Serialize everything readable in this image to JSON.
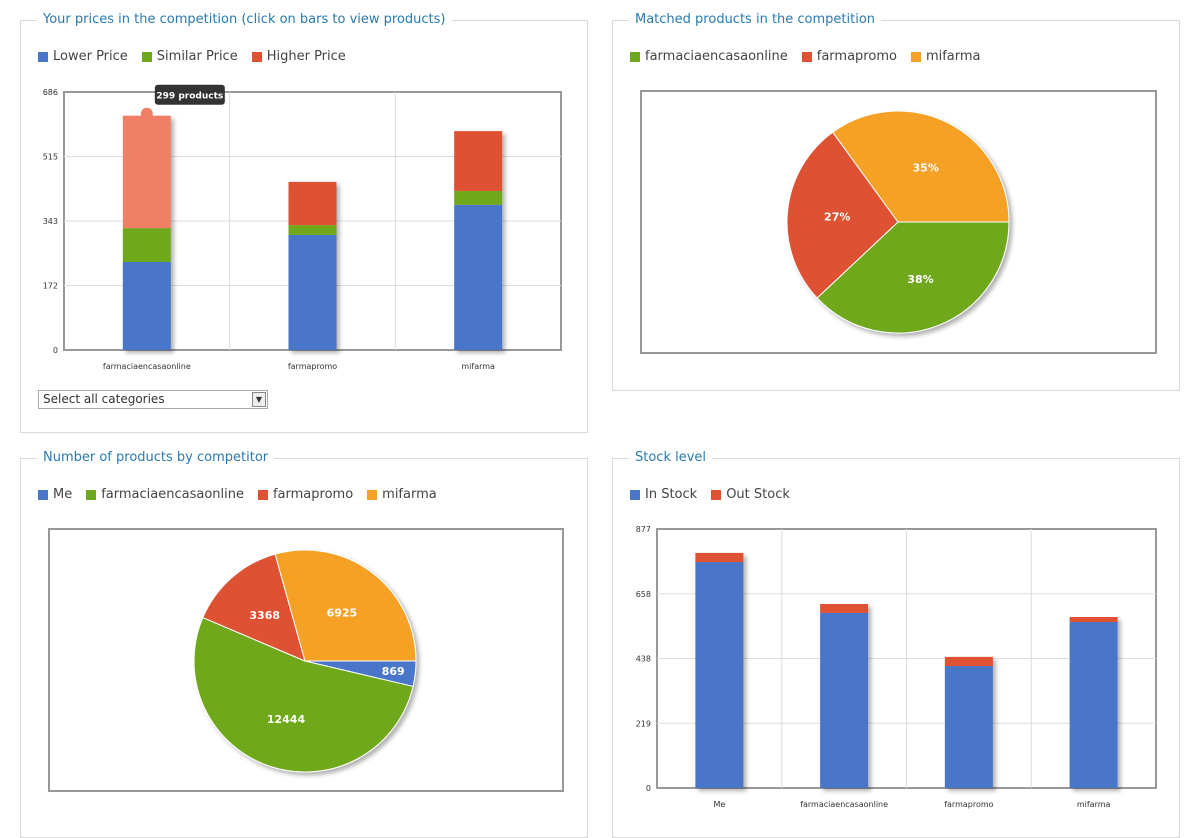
{
  "colors": {
    "blue": "#4a76c9",
    "green": "#6fa81f",
    "red": "#de5132",
    "orange": "#f4a125",
    "highlight": "#f07f65"
  },
  "prices": {
    "title": "Your prices in the competition (click on bars to view products)",
    "select_value": "Select all categories",
    "tooltip": "299 products"
  },
  "matched": {
    "title": "Matched products in the competition"
  },
  "numprod": {
    "title": "Number of products by competitor"
  },
  "stock": {
    "title": "Stock level"
  },
  "chart_data": [
    {
      "type": "bar",
      "stacked": true,
      "title": "Your prices in the competition (click on bars to view products)",
      "categories": [
        "farmaciaencasaonline",
        "farmapromo",
        "mifarma"
      ],
      "series": [
        {
          "name": "Lower Price",
          "color": "#4a76c9",
          "values": [
            234,
            306,
            386
          ]
        },
        {
          "name": "Similar Price",
          "color": "#6fa81f",
          "values": [
            90,
            26,
            37
          ]
        },
        {
          "name": "Higher Price",
          "color": "#de5132",
          "values": [
            299,
            115,
            159
          ]
        }
      ],
      "yticks": [
        "0",
        "172",
        "343",
        "515",
        "686"
      ],
      "ylim": [
        0,
        686
      ],
      "grid": true,
      "legend": "top-left"
    },
    {
      "type": "pie",
      "title": "Matched products in the competition",
      "labels": [
        "farmaciaencasaonline",
        "farmapromo",
        "mifarma"
      ],
      "values": [
        38,
        27,
        35
      ],
      "value_labels": [
        "38%",
        "27%",
        "35%"
      ],
      "colors": [
        "#6fa81f",
        "#de5132",
        "#f4a125"
      ],
      "legend": "top-left"
    },
    {
      "type": "pie",
      "title": "Number of products by competitor",
      "labels": [
        "Me",
        "farmaciaencasaonline",
        "farmapromo",
        "mifarma"
      ],
      "values": [
        869,
        12444,
        3368,
        6925
      ],
      "value_labels": [
        "869",
        "12444",
        "3368",
        "6925"
      ],
      "colors": [
        "#4a76c9",
        "#6fa81f",
        "#de5132",
        "#f4a125"
      ],
      "legend": "top-left"
    },
    {
      "type": "bar",
      "stacked": true,
      "title": "Stock level",
      "categories": [
        "Me",
        "farmaciaencasaonline",
        "farmapromo",
        "mifarma"
      ],
      "series": [
        {
          "name": "In Stock",
          "color": "#4a76c9",
          "values": [
            765,
            593,
            413,
            562
          ]
        },
        {
          "name": "Out Stock",
          "color": "#de5132",
          "values": [
            31,
            30,
            31,
            17
          ]
        }
      ],
      "yticks": [
        "0",
        "219",
        "438",
        "658",
        "877"
      ],
      "ylim": [
        0,
        877
      ],
      "grid": true,
      "legend": "top-left"
    }
  ]
}
